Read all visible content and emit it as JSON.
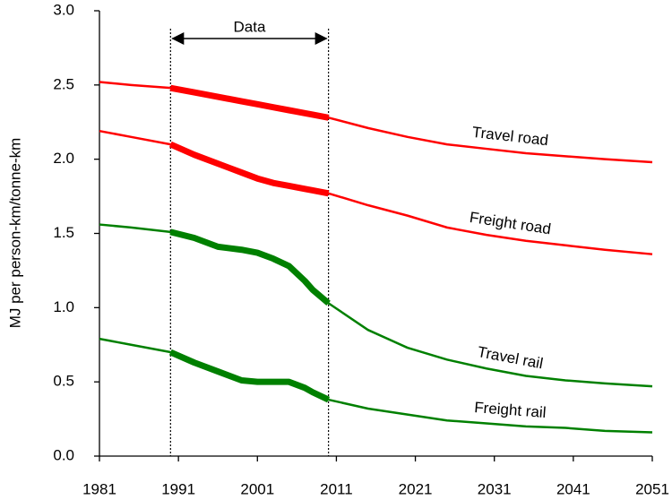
{
  "chart_data": {
    "type": "line",
    "ylabel": "MJ per person-km/tonne-km",
    "x": [
      1981,
      1985,
      1990,
      1993,
      1996,
      1999,
      2001,
      2003,
      2005,
      2007,
      2008,
      2010,
      2015,
      2020,
      2025,
      2030,
      2035,
      2040,
      2045,
      2051
    ],
    "series": [
      {
        "name": "Travel road",
        "color": "#ff0000",
        "values": [
          2.52,
          2.5,
          2.48,
          2.45,
          2.42,
          2.39,
          2.37,
          2.35,
          2.33,
          2.31,
          2.3,
          2.28,
          2.21,
          2.15,
          2.1,
          2.07,
          2.04,
          2.02,
          2.0,
          1.98
        ]
      },
      {
        "name": "Freight road",
        "color": "#ff0000",
        "values": [
          2.19,
          2.15,
          2.1,
          2.03,
          1.97,
          1.91,
          1.87,
          1.84,
          1.82,
          1.8,
          1.79,
          1.77,
          1.69,
          1.62,
          1.54,
          1.49,
          1.45,
          1.42,
          1.39,
          1.36
        ]
      },
      {
        "name": "Travel rail",
        "color": "#008000",
        "values": [
          1.56,
          1.54,
          1.51,
          1.47,
          1.41,
          1.39,
          1.37,
          1.33,
          1.28,
          1.18,
          1.12,
          1.03,
          0.85,
          0.73,
          0.65,
          0.59,
          0.54,
          0.51,
          0.49,
          0.47
        ]
      },
      {
        "name": "Freight rail",
        "color": "#008000",
        "values": [
          0.79,
          0.75,
          0.7,
          0.63,
          0.57,
          0.51,
          0.5,
          0.5,
          0.5,
          0.46,
          0.43,
          0.38,
          0.32,
          0.28,
          0.24,
          0.22,
          0.2,
          0.19,
          0.17,
          0.16
        ]
      }
    ],
    "data_range": {
      "label": "Data",
      "x": [
        1990,
        2010
      ]
    },
    "xlim": [
      1981,
      2051
    ],
    "xticks": [
      1981,
      1991,
      2001,
      2011,
      2021,
      2031,
      2041,
      2051
    ],
    "ylim": [
      0,
      3
    ],
    "yticks": [
      {
        "value": 0,
        "label": "0.0"
      },
      0.5,
      {
        "value": 1,
        "label": "1.0"
      },
      1.5,
      {
        "value": 2,
        "label": "2.0"
      },
      2.5,
      {
        "value": 3,
        "label": "3.0"
      }
    ]
  }
}
